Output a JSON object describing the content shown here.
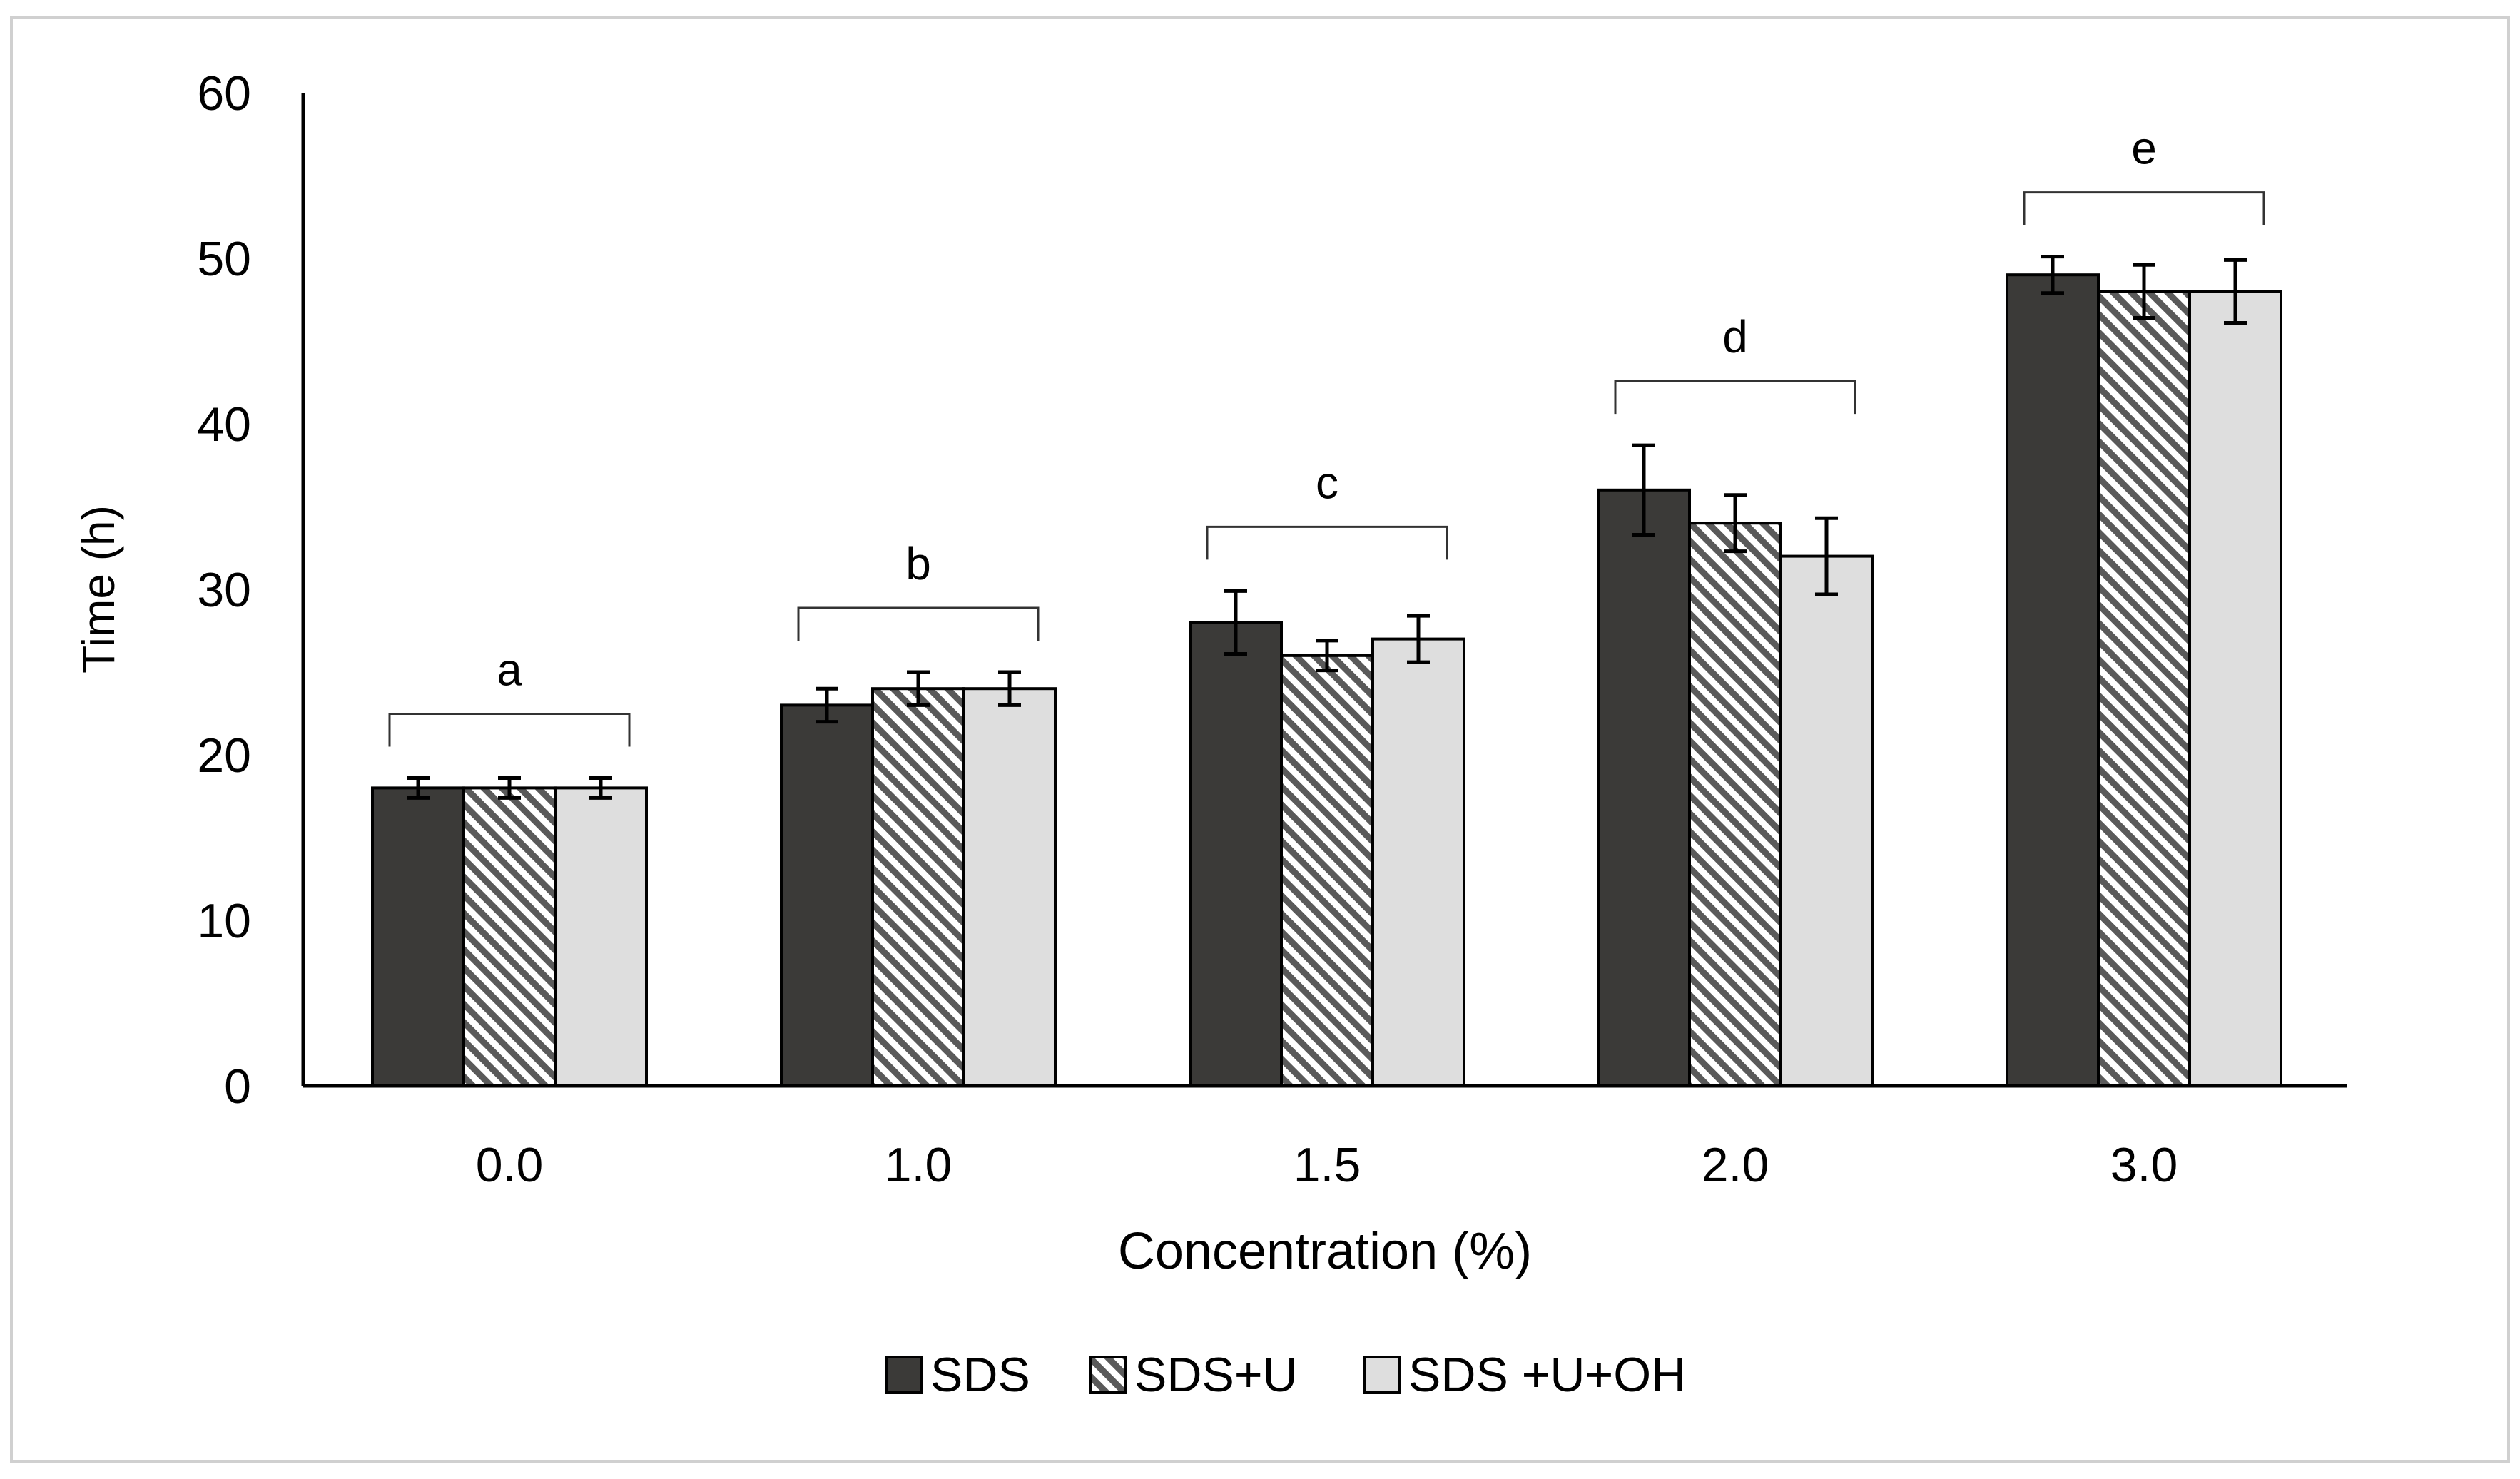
{
  "chart_data": {
    "type": "bar",
    "title": "",
    "xlabel": "Concentration (%)",
    "ylabel": "Time (h)",
    "ylim": [
      0,
      60
    ],
    "yticks": [
      0,
      10,
      20,
      30,
      40,
      50,
      60
    ],
    "ytick_labels": [
      "0",
      "10",
      "20",
      "30",
      "40",
      "50",
      "60"
    ],
    "categories": [
      "0.0",
      "1.0",
      "1.5",
      "2.0",
      "3.0"
    ],
    "series": [
      {
        "name": "SDS",
        "color": "#3b3a38",
        "pattern": "solid",
        "values": [
          18,
          23,
          28,
          36,
          49
        ],
        "errors": [
          0.6,
          1.0,
          1.9,
          2.7,
          1.1
        ]
      },
      {
        "name": "SDS+U",
        "color": "#cfcfcf",
        "pattern": "diagonal-hatch",
        "values": [
          18,
          24,
          26,
          34,
          48
        ],
        "errors": [
          0.6,
          1.0,
          0.9,
          1.7,
          1.6
        ]
      },
      {
        "name": "SDS +U+OH",
        "color": "#dedede",
        "pattern": "solid",
        "values": [
          18,
          24,
          27,
          32,
          48
        ],
        "errors": [
          0.6,
          1.0,
          1.4,
          2.3,
          1.9
        ]
      }
    ],
    "annotations": [
      {
        "category": "0.0",
        "label": "a"
      },
      {
        "category": "1.0",
        "label": "b"
      },
      {
        "category": "1.5",
        "label": "c"
      },
      {
        "category": "2.0",
        "label": "d"
      },
      {
        "category": "3.0",
        "label": "e"
      }
    ],
    "grid": false,
    "legend_position": "bottom-center"
  }
}
